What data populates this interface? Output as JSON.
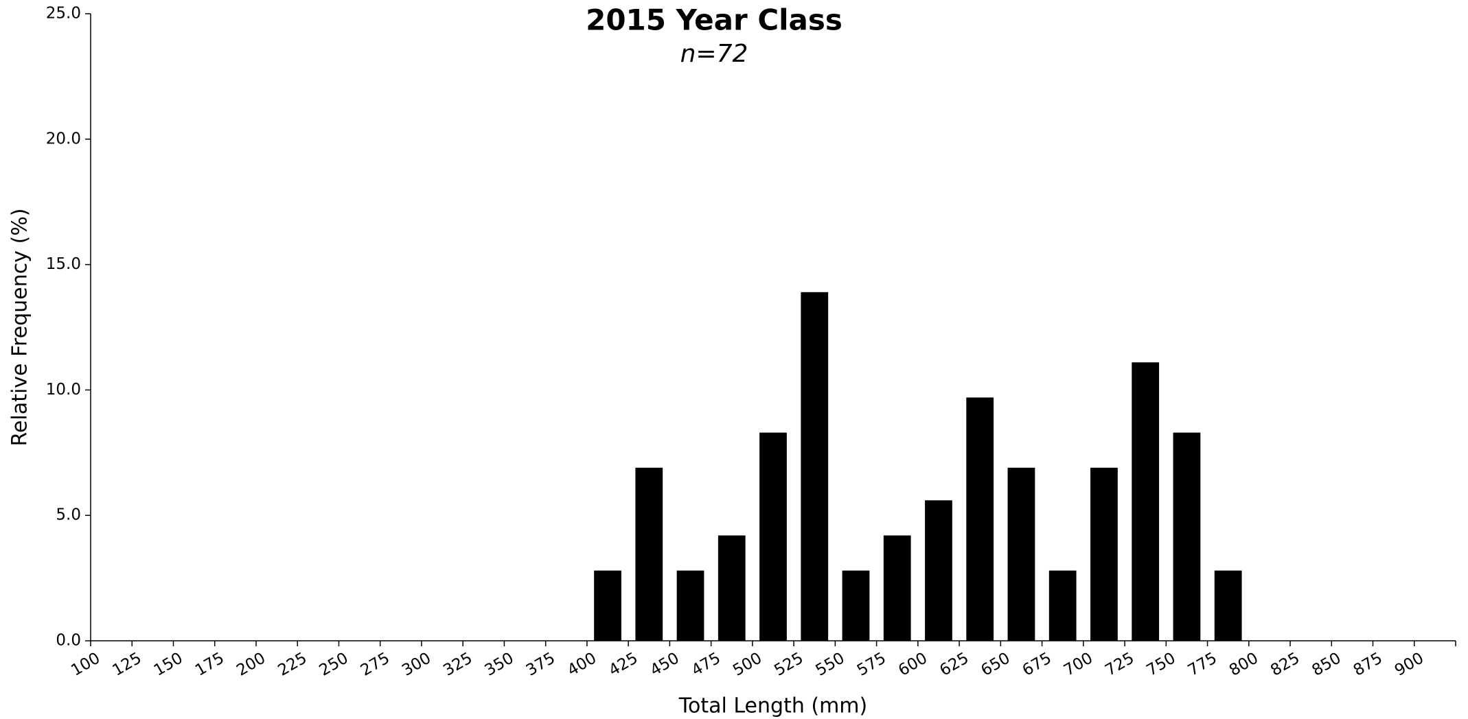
{
  "chart_data": {
    "type": "bar",
    "title": "2015 Year Class",
    "subtitle": "n=72",
    "x_label": "Total Length (mm)",
    "y_label": "Relative Frequency (%)",
    "categories": [
      "100",
      "125",
      "150",
      "175",
      "200",
      "225",
      "250",
      "275",
      "300",
      "325",
      "350",
      "375",
      "400",
      "425",
      "450",
      "475",
      "500",
      "525",
      "550",
      "575",
      "600",
      "625",
      "650",
      "675",
      "700",
      "725",
      "750",
      "775",
      "800",
      "825",
      "850",
      "875",
      "900"
    ],
    "values": [
      0,
      0,
      0,
      0,
      0,
      0,
      0,
      0,
      0,
      0,
      0,
      0,
      2.8,
      6.9,
      2.8,
      4.2,
      8.3,
      13.9,
      2.8,
      4.2,
      5.6,
      9.7,
      6.9,
      2.8,
      6.9,
      11.1,
      8.3,
      2.8,
      0,
      0,
      0,
      0,
      0
    ],
    "color": "#000000",
    "ylim": [
      0,
      25
    ],
    "yticks": [
      {
        "value": 0,
        "label": "0.0"
      },
      {
        "value": 5,
        "label": "5.0"
      },
      {
        "value": 10,
        "label": "10.0"
      },
      {
        "value": 15,
        "label": "15.0"
      },
      {
        "value": 20,
        "label": "20.0"
      },
      {
        "value": 25,
        "label": "25.0"
      }
    ],
    "grid": false
  }
}
